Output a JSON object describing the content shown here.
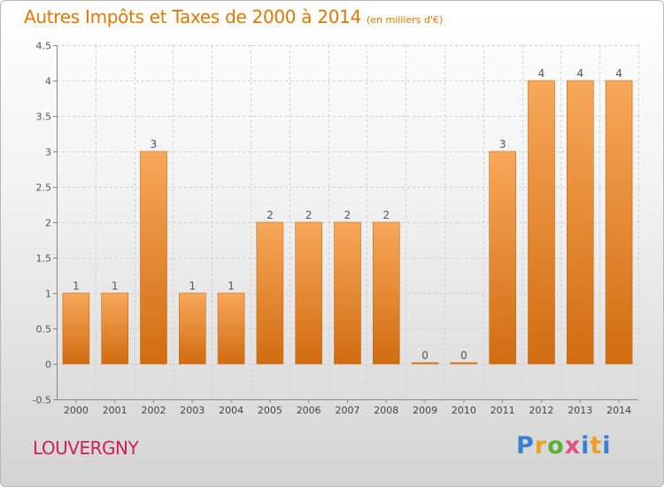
{
  "header": {
    "title": "Autres Impôts et Taxes de 2000 à 2014",
    "subtitle": "(en milliers d'€)"
  },
  "footer": {
    "location": "LOUVERGNY",
    "brand": [
      "P",
      "r",
      "o",
      "x",
      "i",
      "t",
      "i"
    ]
  },
  "colors": {
    "title": "#e07800",
    "bar_top": "#f7a85a",
    "bar_bottom": "#d16c10",
    "location": "#cc2255"
  },
  "chart_data": {
    "type": "bar",
    "categories": [
      "2000",
      "2001",
      "2002",
      "2003",
      "2004",
      "2005",
      "2006",
      "2007",
      "2008",
      "2009",
      "2010",
      "2011",
      "2012",
      "2013",
      "2014"
    ],
    "values": [
      1,
      1,
      3,
      1,
      1,
      2,
      2,
      2,
      2,
      0,
      0,
      3,
      4,
      4,
      4
    ],
    "data_labels": [
      "1",
      "1",
      "3",
      "1",
      "1",
      "2",
      "2",
      "2",
      "2",
      "0",
      "0",
      "3",
      "4",
      "4",
      "4"
    ],
    "title": "Autres Impôts et Taxes de 2000 à 2014",
    "xlabel": "",
    "ylabel": "",
    "ylim": [
      -0.5,
      4.5
    ],
    "yticks": [
      -0.5,
      0,
      0.5,
      1,
      1.5,
      2,
      2.5,
      3,
      3.5,
      4,
      4.5
    ],
    "ytick_labels": [
      "-0.5",
      "0",
      "0.5",
      "1",
      "1.5",
      "2",
      "2.5",
      "3",
      "3.5",
      "4",
      "4.5"
    ],
    "grid": true,
    "legend": "none"
  }
}
